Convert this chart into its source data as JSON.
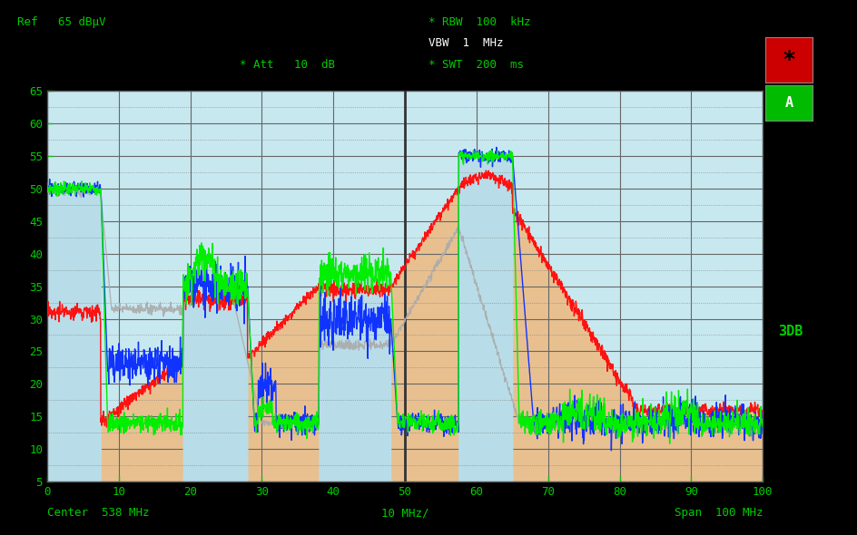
{
  "title_info": {
    "rbw": "* RBW  100  kHz",
    "vbw": "VBW  1  MHz",
    "swt": "* SWT  200  ms",
    "ref_label": "Ref   65 dBμV",
    "att_label": "* Att   10  dB",
    "center_label": "Center  538 MHz",
    "span_label": "Span  100 MHz",
    "div_label": "10 MHz/"
  },
  "ylim": [
    5,
    65
  ],
  "yticks": [
    5,
    10,
    15,
    20,
    25,
    30,
    35,
    40,
    45,
    50,
    55,
    60,
    65
  ],
  "xlim": [
    0,
    100
  ],
  "xticks": [
    0,
    10,
    20,
    30,
    40,
    50,
    60,
    70,
    80,
    90,
    100
  ],
  "bg_color": "#000000",
  "plot_bg_color": "#c8e8f0",
  "cyan_fill": "#b8dde8",
  "orange_fill": "#e8c090",
  "grid_color": "#888888",
  "label_color": "#00cc00",
  "star_box_color": "#cc0000",
  "a_box_color": "#00cc00"
}
